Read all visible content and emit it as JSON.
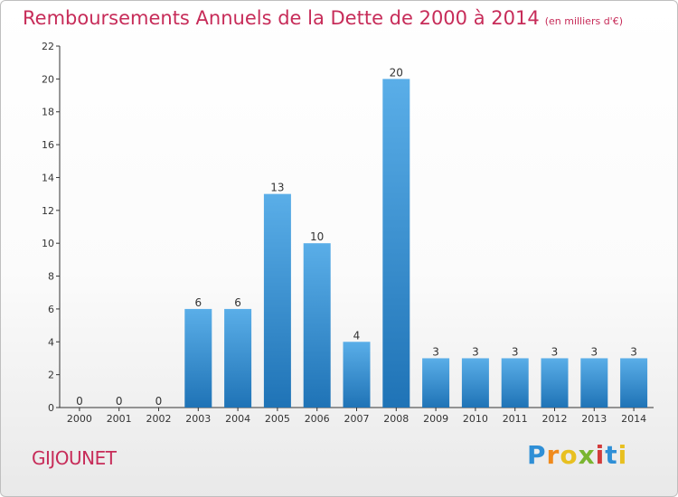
{
  "title": "Remboursements Annuels de la Dette de 2000 à 2014",
  "subtitle": "(en milliers d'€)",
  "commune": "GIJOUNET",
  "logo": "Proxiti",
  "colors": {
    "title": "#c72c59",
    "bar_top": "#5aaee8",
    "bar_bottom": "#1f73b6",
    "axis": "#333333"
  },
  "chart_data": {
    "type": "bar",
    "title": "Remboursements Annuels de la Dette de 2000 à 2014",
    "subtitle": "(en milliers d'€)",
    "categories": [
      "2000",
      "2001",
      "2002",
      "2003",
      "2004",
      "2005",
      "2006",
      "2007",
      "2008",
      "2009",
      "2010",
      "2011",
      "2012",
      "2013",
      "2014"
    ],
    "values": [
      0,
      0,
      0,
      6,
      6,
      13,
      10,
      4,
      20,
      3,
      3,
      3,
      3,
      3,
      3
    ],
    "ylim": [
      0,
      22
    ],
    "yticks": [
      0,
      2,
      4,
      6,
      8,
      10,
      12,
      14,
      16,
      18,
      20,
      22
    ],
    "grid": false,
    "legend": "none"
  }
}
